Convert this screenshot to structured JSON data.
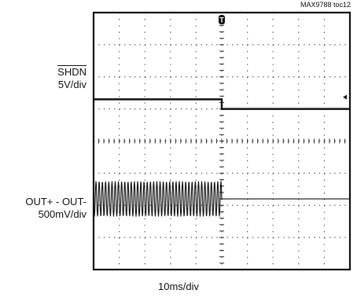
{
  "figure_id": "MAX9788 toc12",
  "chart_data": {
    "type": "line",
    "instrument": "oscilloscope",
    "grid": true,
    "divisions": {
      "x": 10,
      "y": 8
    },
    "trigger_marker": "T",
    "xlabel": "10ms/div",
    "channels": [
      {
        "name": "SHDN",
        "scale": "5V/div",
        "waveform": "step",
        "high_div": 5.3,
        "low_div": 5.0,
        "transition_div": 5.0
      },
      {
        "name": "OUT+ - OUT-",
        "scale": "500mV/div",
        "waveform": "burst",
        "baseline_div": 2.2,
        "amplitude_div": 0.55,
        "cycles": 40,
        "stop_div": 5.0
      }
    ]
  }
}
